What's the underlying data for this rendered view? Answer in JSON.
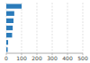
{
  "chart_data": {
    "type": "bar",
    "orientation": "horizontal",
    "categories": [
      null,
      null,
      null,
      null,
      null,
      null,
      null
    ],
    "values": [
      100,
      52,
      47,
      42,
      38,
      12,
      9
    ],
    "color": "#2b7bba",
    "xlim": [
      0,
      500
    ],
    "xticks": [
      0,
      100,
      200,
      300,
      400,
      500
    ],
    "grid": true,
    "tick_labels": "x"
  }
}
